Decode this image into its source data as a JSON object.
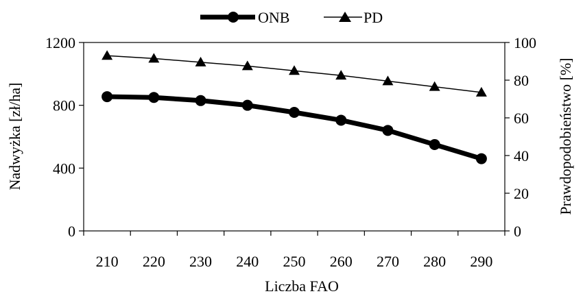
{
  "chart_data": {
    "type": "line",
    "title": "",
    "xlabel": "Liczba FAO",
    "ylabel": "Nadwyżka [zł/ha]",
    "y2label": "Prawdopodobieństwo [%]",
    "categories": [
      210,
      220,
      230,
      240,
      250,
      260,
      270,
      280,
      290
    ],
    "ylim": [
      0,
      1200
    ],
    "y2lim": [
      0,
      100
    ],
    "yticks": [
      0,
      400,
      800,
      1200
    ],
    "y2ticks": [
      0,
      20,
      40,
      60,
      80,
      100
    ],
    "grid": false,
    "legend_position": "top-center",
    "series": [
      {
        "name": "ONB",
        "axis": "left",
        "marker": "circle",
        "line": "thick",
        "values": [
          855,
          850,
          830,
          800,
          755,
          705,
          640,
          550,
          460
        ]
      },
      {
        "name": "PD",
        "axis": "right",
        "marker": "triangle",
        "line": "thin",
        "values": [
          93,
          91.5,
          89.5,
          87.5,
          85,
          82.5,
          79.5,
          76.5,
          73.5
        ]
      }
    ],
    "colors": {
      "line": "#000000",
      "background": "#ffffff"
    }
  }
}
